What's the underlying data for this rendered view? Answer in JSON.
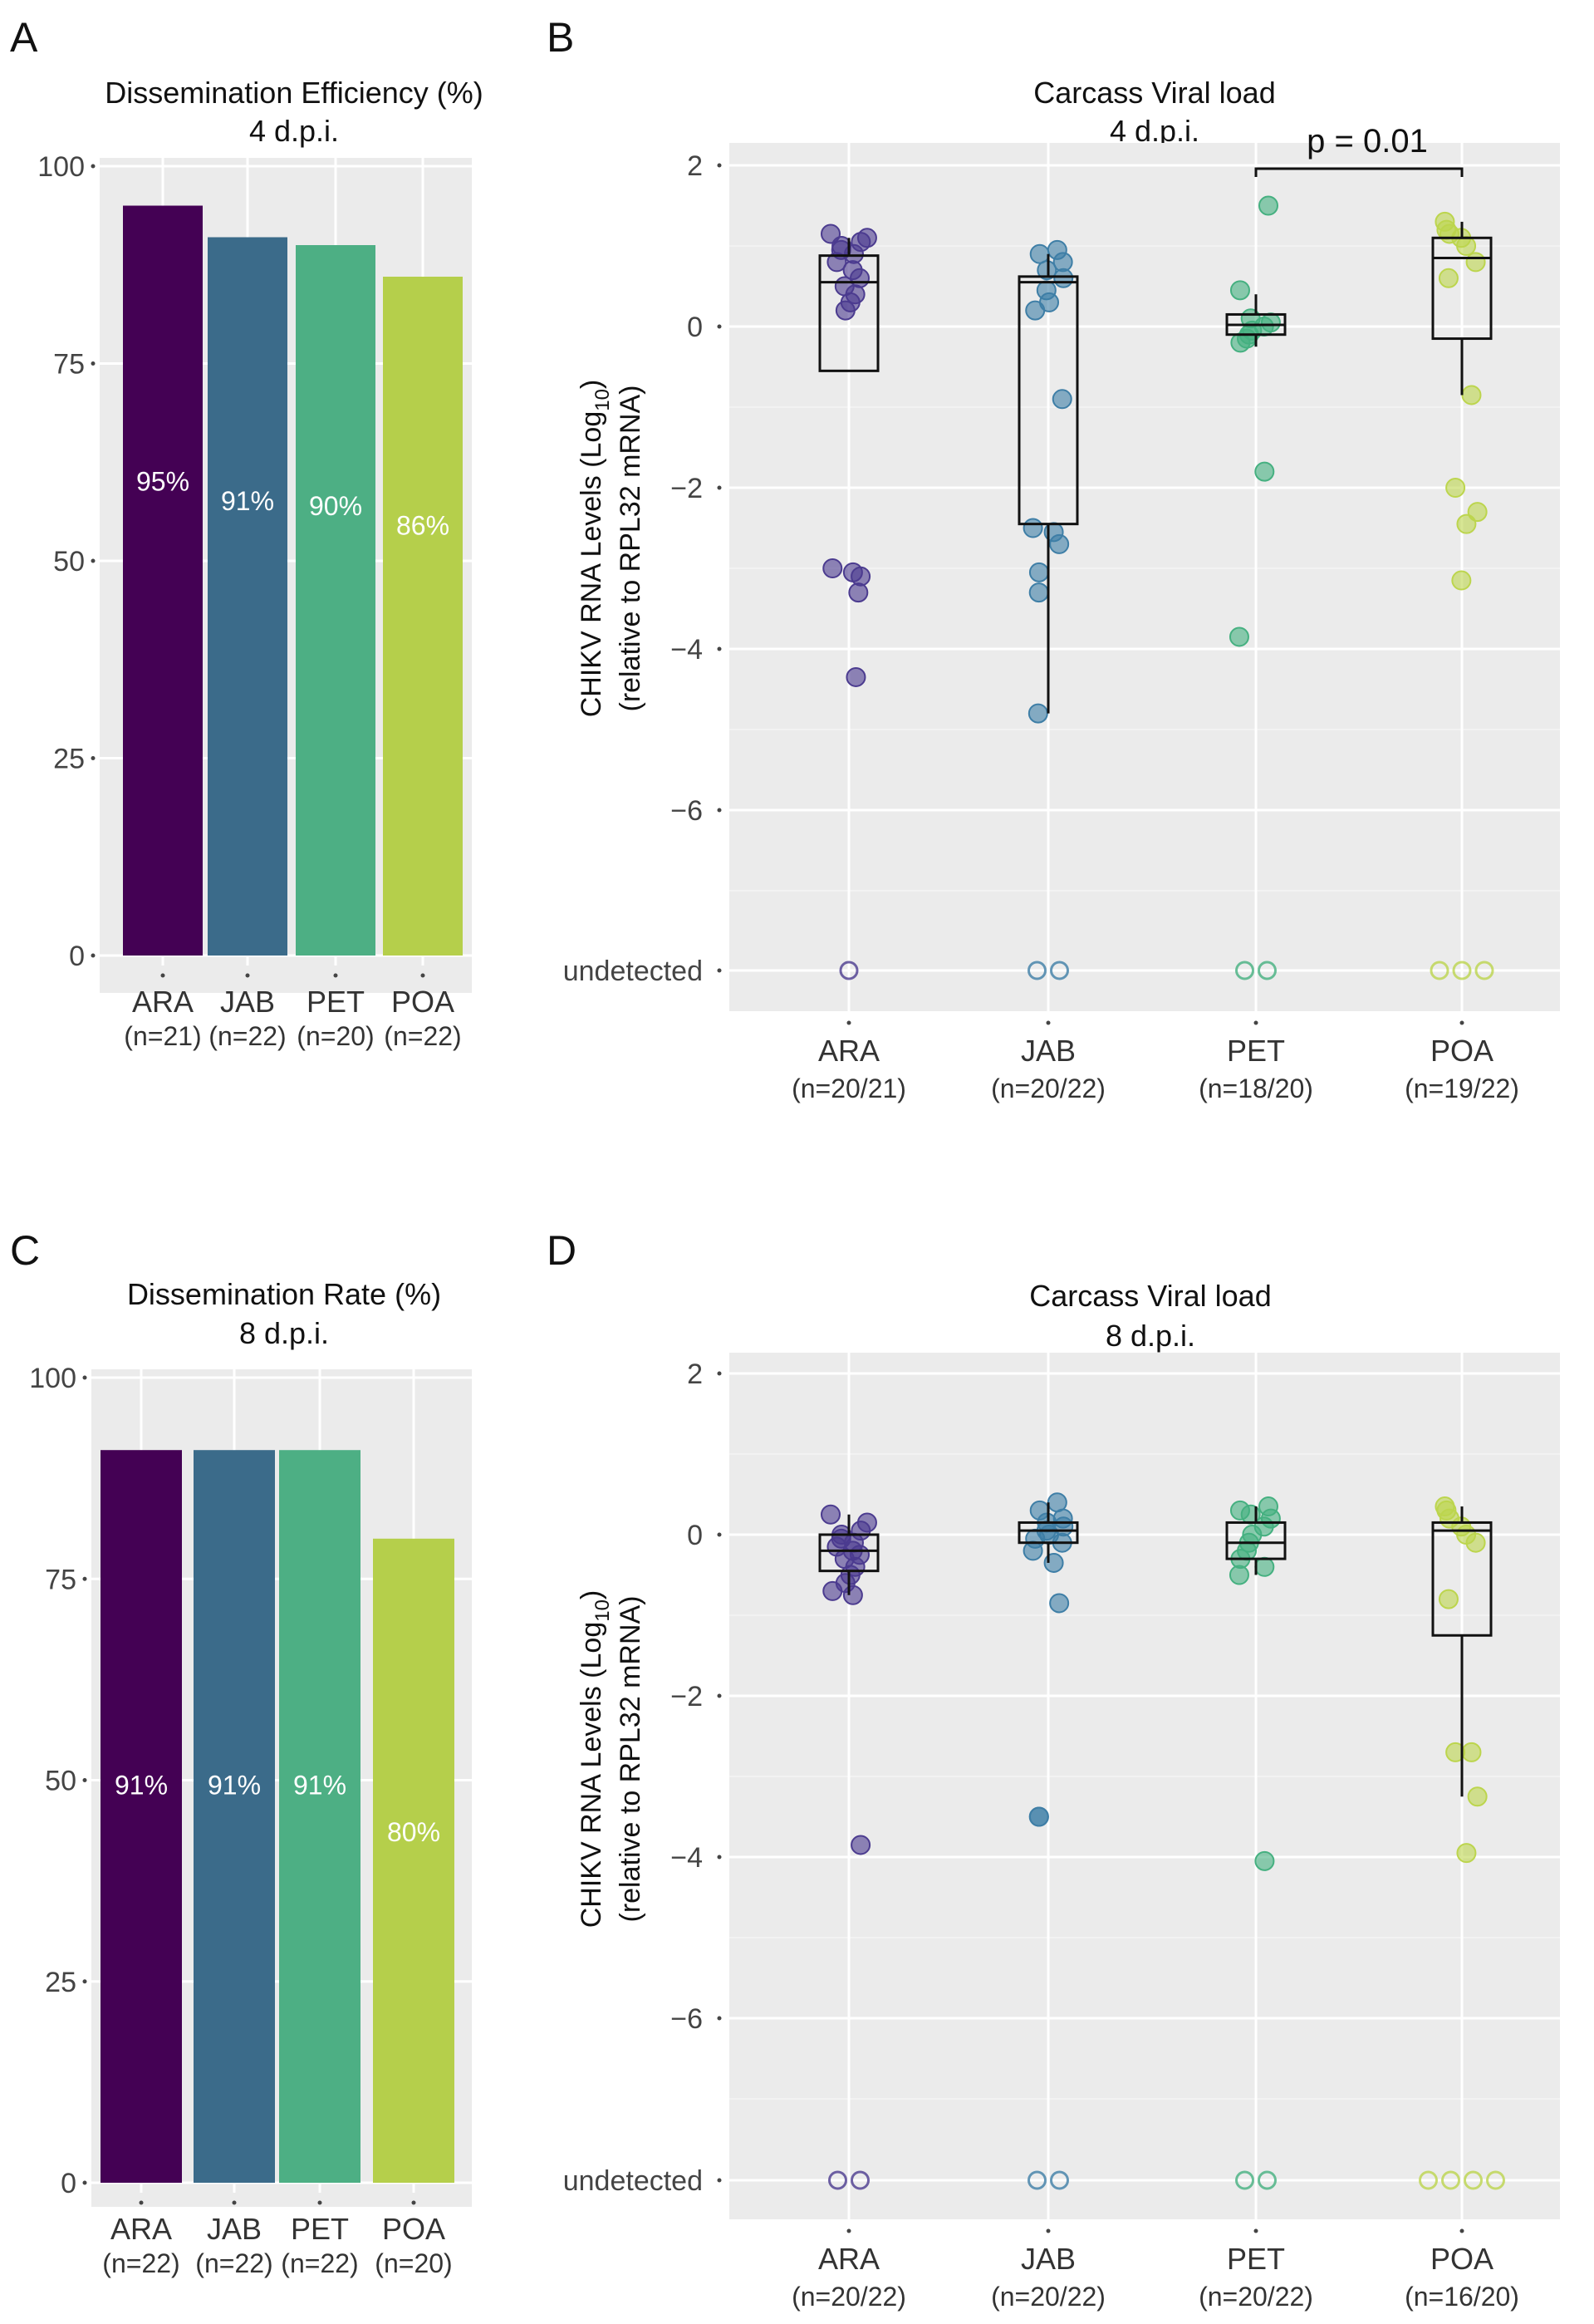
{
  "chart_data": [
    {
      "panel": "A",
      "type": "bar",
      "title": "Dissemination Efficiency (%)",
      "subtitle": "4 d.p.i.",
      "categories": [
        "ARA",
        "JAB",
        "PET",
        "POA"
      ],
      "n_labels": [
        "(n=21)",
        "(n=22)",
        "(n=20)",
        "(n=22)"
      ],
      "values": [
        95,
        91,
        90,
        86
      ],
      "value_labels": [
        "95%",
        "91%",
        "90%",
        "86%"
      ],
      "colors": [
        "#440154",
        "#3b6b8a",
        "#4daf84",
        "#b5cf4b"
      ],
      "ylim": [
        0,
        100
      ],
      "yticks": [
        0,
        25,
        50,
        75,
        100
      ]
    },
    {
      "panel": "B",
      "type": "scatter",
      "title": "Carcass Viral load",
      "subtitle": "4 d.p.i.",
      "ylabel_line1": "CHIKV RNA Levels (Log",
      "ylabel_sub": "10",
      "ylabel_tail": ")",
      "ylabel_line2": "(relative to RPL32 mRNA)",
      "categories": [
        "ARA",
        "JAB",
        "PET",
        "POA"
      ],
      "n_labels": [
        "(n=20/21)",
        "(n=20/22)",
        "(n=18/20)",
        "(n=19/22)"
      ],
      "colors": [
        "#4b3b8f",
        "#3e7ea6",
        "#45b080",
        "#bcd54d"
      ],
      "ylim": [
        -8,
        2
      ],
      "yticks": [
        "2",
        "0",
        "−2",
        "−4",
        "−6",
        "undetected"
      ],
      "annotation": "p = 0.01",
      "annotation_between": [
        "PET",
        "POA"
      ],
      "groups": [
        {
          "box": {
            "q1": -0.55,
            "median": 0.55,
            "q3": 0.88,
            "whisker_low": -0.55,
            "whisker_high": 1.1
          },
          "points": [
            1.15,
            1.1,
            1.05,
            1.0,
            0.95,
            0.9,
            0.8,
            0.7,
            0.6,
            0.5,
            0.4,
            0.3,
            0.2,
            -3.0,
            -3.05,
            -3.1,
            -3.3,
            -4.35
          ],
          "undetected": 1
        },
        {
          "box": {
            "q1": -2.45,
            "median": 0.55,
            "q3": 0.62,
            "whisker_low": -4.8,
            "whisker_high": 0.9
          },
          "points": [
            0.95,
            0.9,
            0.8,
            0.7,
            0.6,
            0.45,
            0.3,
            0.2,
            -0.9,
            -2.5,
            -2.55,
            -2.7,
            -3.05,
            -3.3,
            -4.8
          ],
          "undetected": 2
        },
        {
          "box": {
            "q1": -0.1,
            "median": 0.02,
            "q3": 0.15,
            "whisker_low": -0.25,
            "whisker_high": 0.4
          },
          "points": [
            1.5,
            0.45,
            0.1,
            0.05,
            0.0,
            -0.05,
            -0.1,
            -0.15,
            -0.2,
            -1.8,
            -3.85
          ],
          "undetected": 2
        },
        {
          "box": {
            "q1": -0.15,
            "median": 0.85,
            "q3": 1.1,
            "whisker_low": -0.85,
            "whisker_high": 1.3
          },
          "points": [
            1.3,
            1.2,
            1.15,
            1.1,
            1.0,
            0.8,
            0.6,
            -0.85,
            -2.0,
            -2.3,
            -2.45,
            -3.15
          ],
          "undetected": 3
        }
      ]
    },
    {
      "panel": "C",
      "type": "bar",
      "title": "Dissemination Rate (%)",
      "subtitle": "8 d.p.i.",
      "categories": [
        "ARA",
        "JAB",
        "PET",
        "POA"
      ],
      "n_labels": [
        "(n=22)",
        "(n=22)",
        "(n=22)",
        "(n=20)"
      ],
      "values": [
        91,
        91,
        91,
        80
      ],
      "value_labels": [
        "91%",
        "91%",
        "91%",
        "80%"
      ],
      "colors": [
        "#440154",
        "#3b6b8a",
        "#4daf84",
        "#b5cf4b"
      ],
      "ylim": [
        0,
        100
      ],
      "yticks": [
        0,
        25,
        50,
        75,
        100
      ]
    },
    {
      "panel": "D",
      "type": "scatter",
      "title": "Carcass Viral load",
      "subtitle": "8 d.p.i.",
      "ylabel_line1": "CHIKV RNA Levels (Log",
      "ylabel_sub": "10",
      "ylabel_tail": ")",
      "ylabel_line2": "(relative to RPL32 mRNA)",
      "categories": [
        "ARA",
        "JAB",
        "PET",
        "POA"
      ],
      "n_labels": [
        "(n=20/22)",
        "(n=20/22)",
        "(n=20/22)",
        "(n=16/20)"
      ],
      "colors": [
        "#4b3b8f",
        "#3e7ea6",
        "#45b080",
        "#bcd54d"
      ],
      "ylim": [
        -8,
        2
      ],
      "yticks": [
        "2",
        "0",
        "−2",
        "−4",
        "−6",
        "undetected"
      ],
      "annotation": "",
      "groups": [
        {
          "box": {
            "q1": -0.45,
            "median": -0.2,
            "q3": 0.0,
            "whisker_low": -0.75,
            "whisker_high": 0.25
          },
          "points": [
            0.25,
            0.15,
            0.05,
            0.0,
            -0.05,
            -0.1,
            -0.15,
            -0.2,
            -0.25,
            -0.3,
            -0.4,
            -0.5,
            -0.6,
            -0.7,
            -0.75,
            -3.85
          ],
          "undetected": 2
        },
        {
          "box": {
            "q1": -0.1,
            "median": 0.05,
            "q3": 0.15,
            "whisker_low": -0.35,
            "whisker_high": 0.4
          },
          "points": [
            0.4,
            0.3,
            0.2,
            0.15,
            0.1,
            0.05,
            0.0,
            -0.05,
            -0.1,
            -0.2,
            -0.35,
            -0.85,
            -3.5,
            -3.5
          ],
          "undetected": 2
        },
        {
          "box": {
            "q1": -0.3,
            "median": -0.1,
            "q3": 0.15,
            "whisker_low": -0.5,
            "whisker_high": 0.35
          },
          "points": [
            0.35,
            0.3,
            0.25,
            0.2,
            0.1,
            0.0,
            -0.1,
            -0.2,
            -0.3,
            -0.4,
            -0.5,
            -4.05
          ],
          "undetected": 2
        },
        {
          "box": {
            "q1": -1.25,
            "median": 0.05,
            "q3": 0.15,
            "whisker_low": -3.25,
            "whisker_high": 0.35
          },
          "points": [
            0.35,
            0.3,
            0.2,
            0.1,
            0.0,
            -0.1,
            -0.8,
            -2.7,
            -2.7,
            -3.25,
            -3.95
          ],
          "undetected": 4
        }
      ]
    }
  ]
}
